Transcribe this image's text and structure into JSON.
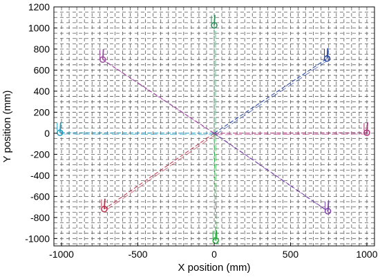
{
  "chart_data": {
    "type": "line",
    "xlabel": "X position (mm)",
    "ylabel": "Y position (mm)",
    "xlim": [
      -1050,
      1050
    ],
    "ylim": [
      -1070,
      1200
    ],
    "grid": true,
    "grid_style": "dashed",
    "xticks": [
      -1000,
      -500,
      0,
      500,
      1000
    ],
    "xtick_labels": [
      "-1000",
      "-500",
      "0",
      "500",
      "1000"
    ],
    "yticks": [
      1200,
      1000,
      800,
      600,
      400,
      200,
      0,
      -200,
      -400,
      -600,
      -800,
      -1000
    ],
    "ytick_labels": [
      "1200",
      "1000",
      "800",
      "600",
      "400",
      "200",
      "0",
      "-200",
      "-400",
      "-600",
      "-800",
      "-1000"
    ],
    "series": [
      {
        "color": "#2e8b57",
        "target": [
          0,
          1025
        ],
        "path": [
          [
            0,
            0
          ],
          [
            0,
            1025
          ]
        ]
      },
      {
        "color": "#1f3fa8",
        "target": [
          740,
          710
        ],
        "path": [
          [
            0,
            0
          ],
          [
            740,
            710
          ]
        ]
      },
      {
        "color": "#b0307a",
        "target": [
          1000,
          5
        ],
        "path": [
          [
            0,
            0
          ],
          [
            1000,
            5
          ]
        ]
      },
      {
        "color": "#7a3fa8",
        "target": [
          745,
          -740
        ],
        "path": [
          [
            0,
            0
          ],
          [
            745,
            -740
          ]
        ]
      },
      {
        "color": "#1fa83a",
        "target": [
          10,
          -1020
        ],
        "path": [
          [
            0,
            0
          ],
          [
            10,
            -1020
          ]
        ]
      },
      {
        "color": "#c0304a",
        "target": [
          -720,
          -720
        ],
        "path": [
          [
            0,
            0
          ],
          [
            -720,
            -720
          ]
        ]
      },
      {
        "color": "#1aa0c8",
        "target": [
          -1010,
          5
        ],
        "path": [
          [
            0,
            0
          ],
          [
            -1010,
            5
          ]
        ]
      },
      {
        "color": "#a04aa0",
        "target": [
          -730,
          700
        ],
        "path": [
          [
            0,
            0
          ],
          [
            -730,
            700
          ]
        ]
      }
    ]
  }
}
